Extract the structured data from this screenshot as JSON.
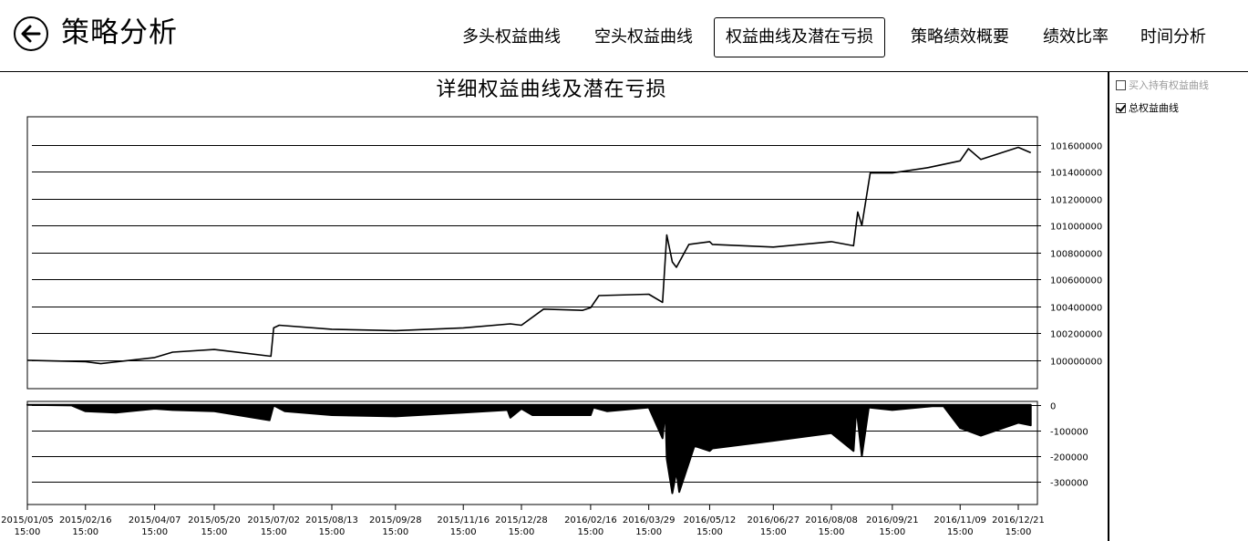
{
  "header": {
    "title": "策略分析",
    "back_icon": "back-arrow-icon",
    "tabs": [
      {
        "label": "多头权益曲线",
        "active": false
      },
      {
        "label": "空头权益曲线",
        "active": false
      },
      {
        "label": "权益曲线及潜在亏损",
        "active": true
      },
      {
        "label": "策略绩效概要",
        "active": false
      },
      {
        "label": "绩效比率",
        "active": false
      },
      {
        "label": "时间分析",
        "active": false
      }
    ]
  },
  "options": [
    {
      "label": "买入持有权益曲线",
      "checked": false
    },
    {
      "label": "总权益曲线",
      "checked": true
    }
  ],
  "chart_data": {
    "title": "详细权益曲线及潜在亏损",
    "x_labels": [
      {
        "date": "2015/01/05",
        "time": "15:00"
      },
      {
        "date": "2015/02/16",
        "time": "15:00"
      },
      {
        "date": "2015/04/07",
        "time": "15:00"
      },
      {
        "date": "2015/05/20",
        "time": "15:00"
      },
      {
        "date": "2015/07/02",
        "time": "15:00"
      },
      {
        "date": "2015/08/13",
        "time": "15:00"
      },
      {
        "date": "2015/09/28",
        "time": "15:00"
      },
      {
        "date": "2015/11/16",
        "time": "15:00"
      },
      {
        "date": "2015/12/28",
        "time": "15:00"
      },
      {
        "date": "2016/02/16",
        "time": "15:00"
      },
      {
        "date": "2016/03/29",
        "time": "15:00"
      },
      {
        "date": "2016/05/12",
        "time": "15:00"
      },
      {
        "date": "2016/06/27",
        "time": "15:00"
      },
      {
        "date": "2016/08/08",
        "time": "15:00"
      },
      {
        "date": "2016/09/21",
        "time": "15:00"
      },
      {
        "date": "2016/11/09",
        "time": "15:00"
      },
      {
        "date": "2016/12/21",
        "time": "15:00"
      }
    ],
    "charts": [
      {
        "type": "line",
        "name": "equity",
        "series_name": "总权益曲线",
        "ylim": [
          99830000,
          101780000
        ],
        "y_ticks": [
          100000000,
          100200000,
          100400000,
          100600000,
          100800000,
          101000000,
          101200000,
          101400000,
          101600000
        ],
        "grid": true,
        "x": [
          "2015/01/05",
          "2015/02/16",
          "2015/02/27",
          "2015/04/07",
          "2015/04/20",
          "2015/05/20",
          "2015/06/30",
          "2015/07/02",
          "2015/07/06",
          "2015/08/13",
          "2015/09/28",
          "2015/11/16",
          "2015/12/20",
          "2015/12/28",
          "2016/01/13",
          "2016/02/10",
          "2016/02/16",
          "2016/02/22",
          "2016/03/29",
          "2016/04/08",
          "2016/04/11",
          "2016/04/15",
          "2016/04/18",
          "2016/04/27",
          "2016/05/12",
          "2016/05/14",
          "2016/06/27",
          "2016/08/08",
          "2016/08/24",
          "2016/08/27",
          "2016/08/30",
          "2016/09/05",
          "2016/09/21",
          "2016/10/17",
          "2016/11/09",
          "2016/11/15",
          "2016/11/24",
          "2016/12/21",
          "2016/12/30"
        ],
        "values": [
          100000000,
          99990000,
          99975000,
          100020000,
          100060000,
          100080000,
          100030000,
          100240000,
          100260000,
          100230000,
          100220000,
          100240000,
          100270000,
          100260000,
          100380000,
          100370000,
          100390000,
          100480000,
          100490000,
          100430000,
          100930000,
          100730000,
          100690000,
          100860000,
          100880000,
          100860000,
          100840000,
          100880000,
          100850000,
          101100000,
          101000000,
          101390000,
          101390000,
          101430000,
          101480000,
          101570000,
          101490000,
          101580000,
          101540000
        ]
      },
      {
        "type": "area",
        "name": "drawdown",
        "series_name": "潜在亏损",
        "ylim": [
          -375000,
          10000
        ],
        "y_ticks": [
          0,
          -100000,
          -200000,
          -300000
        ],
        "grid": true,
        "x": [
          "2015/01/05",
          "2015/02/06",
          "2015/02/16",
          "2015/03/10",
          "2015/04/07",
          "2015/04/20",
          "2015/05/20",
          "2015/06/29",
          "2015/07/01",
          "2015/07/02",
          "2015/07/10",
          "2015/08/13",
          "2015/09/28",
          "2015/11/16",
          "2015/12/18",
          "2015/12/20",
          "2015/12/28",
          "2016/01/05",
          "2016/02/16",
          "2016/02/18",
          "2016/02/28",
          "2016/03/29",
          "2016/04/08",
          "2016/04/10",
          "2016/04/11",
          "2016/04/15",
          "2016/04/18",
          "2016/04/20",
          "2016/05/01",
          "2016/05/12",
          "2016/05/14",
          "2016/06/27",
          "2016/08/08",
          "2016/08/24",
          "2016/08/26",
          "2016/08/30",
          "2016/09/04",
          "2016/09/21",
          "2016/10/20",
          "2016/10/28",
          "2016/11/09",
          "2016/11/24",
          "2016/12/21",
          "2016/12/30"
        ],
        "values": [
          0,
          -2000,
          -25000,
          -30000,
          -15000,
          -20000,
          -25000,
          -60000,
          -20000,
          -2000,
          -25000,
          -40000,
          -45000,
          -30000,
          -20000,
          -50000,
          -15000,
          -40000,
          -40000,
          -10000,
          -25000,
          -10000,
          -130000,
          -15000,
          -210000,
          -345000,
          -260000,
          -340000,
          -160000,
          -180000,
          -170000,
          -140000,
          -110000,
          -180000,
          -10000,
          -200000,
          -10000,
          -20000,
          -5000,
          -5000,
          -90000,
          -120000,
          -70000,
          -80000
        ]
      }
    ]
  }
}
